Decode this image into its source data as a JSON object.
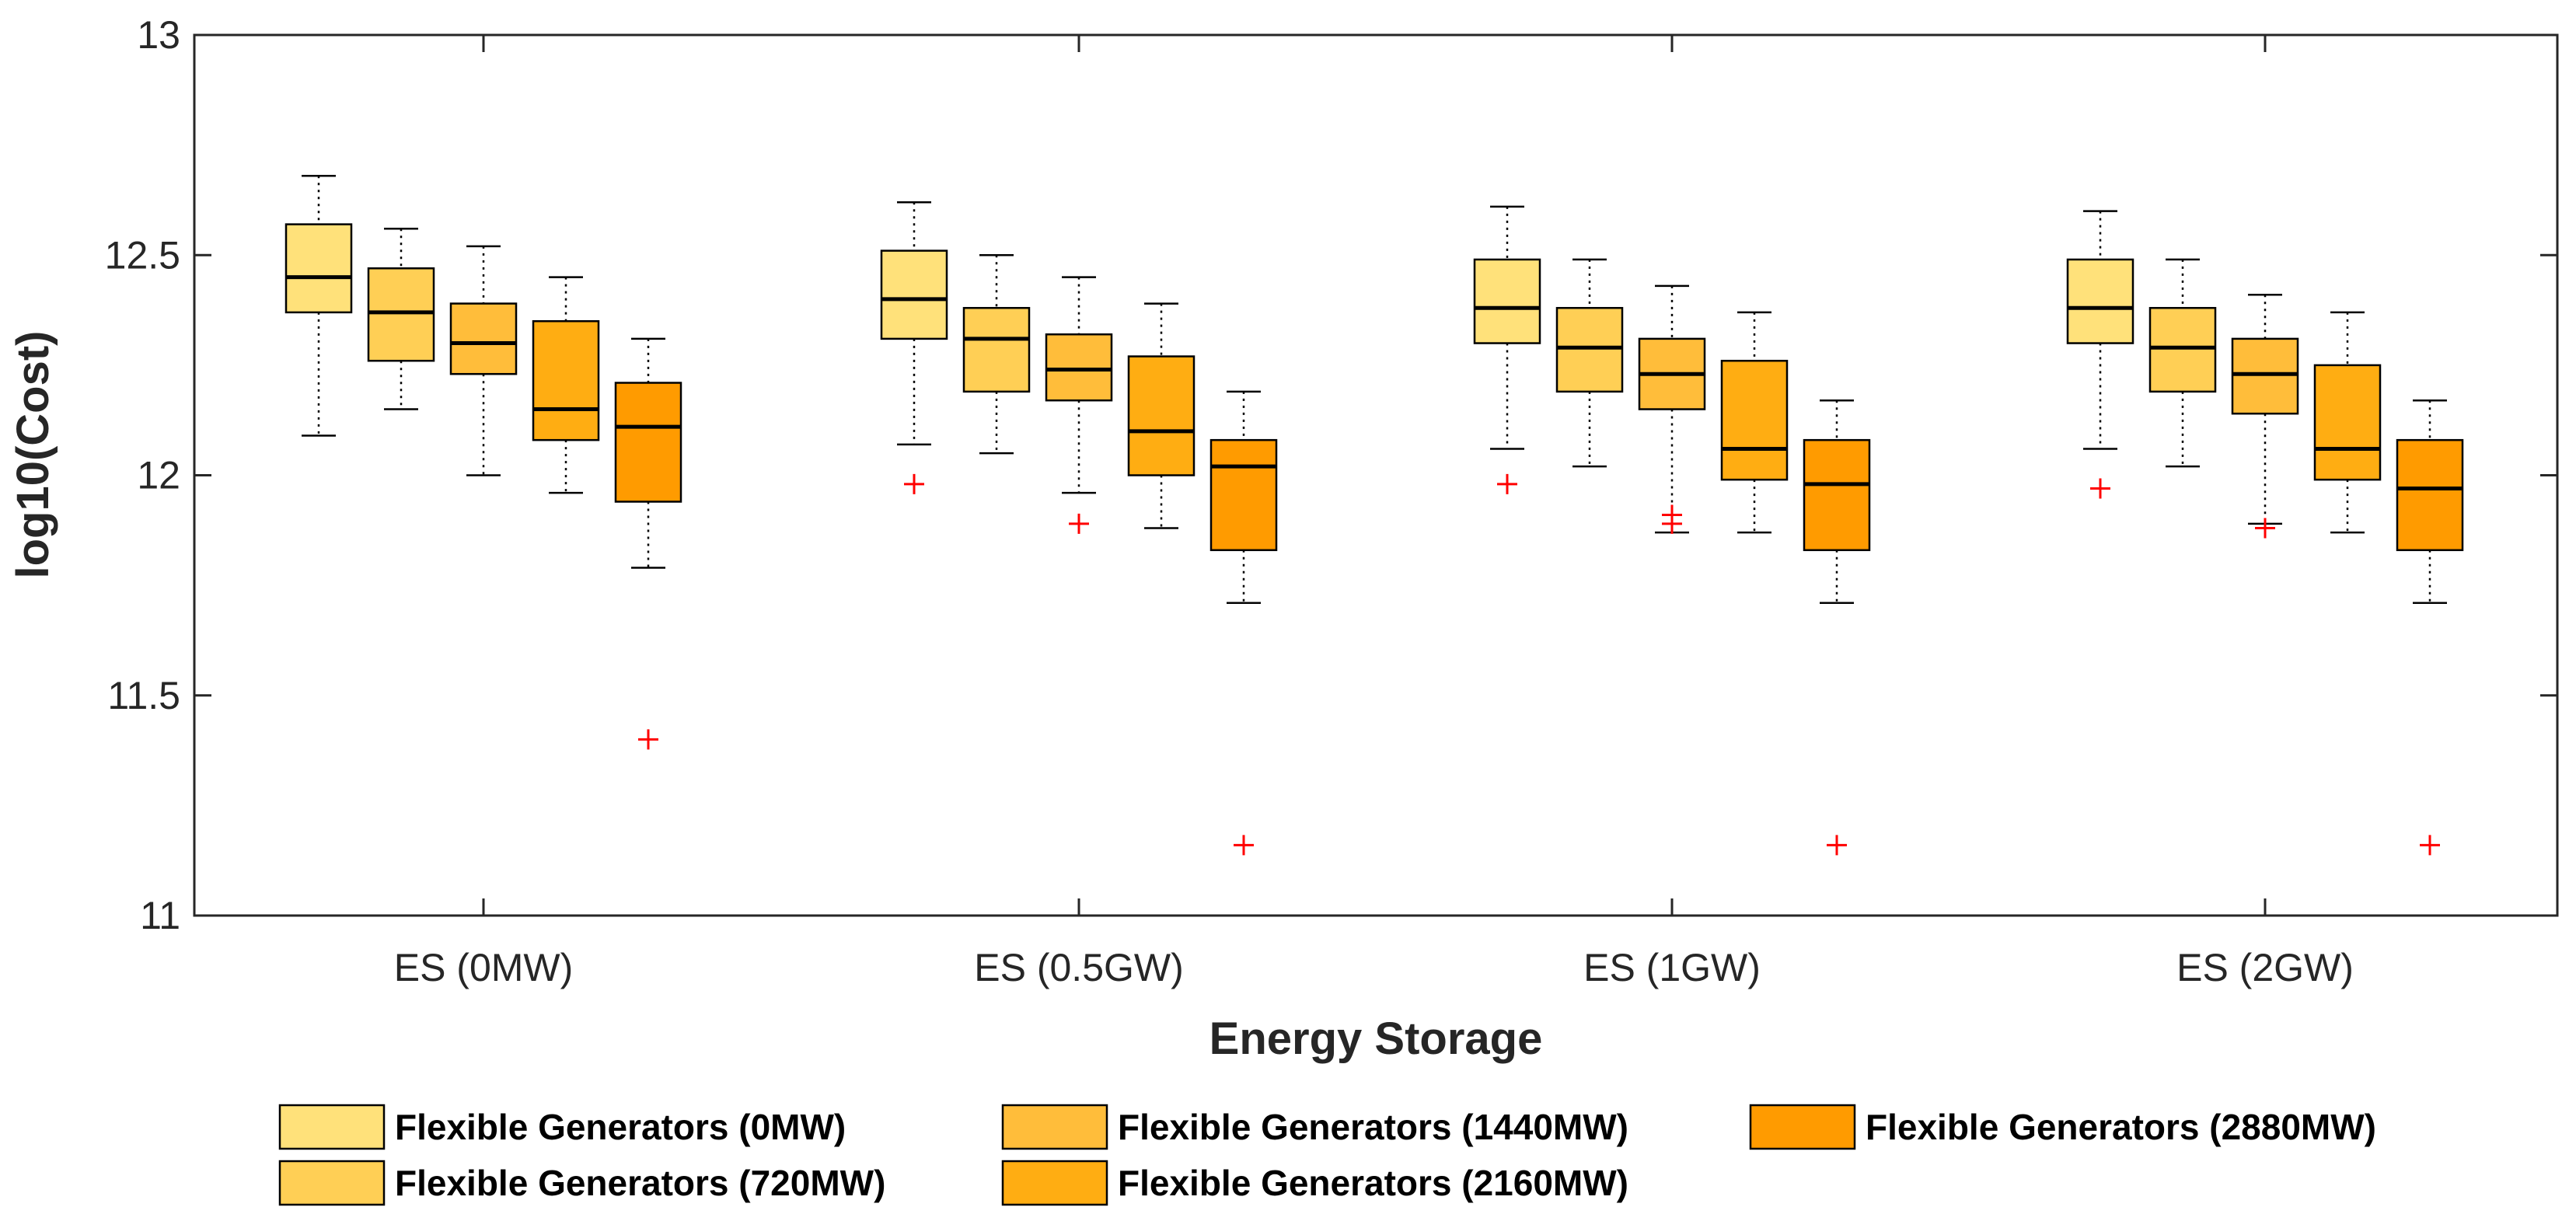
{
  "chart_data": {
    "type": "boxplot",
    "title": "",
    "xlabel": "Energy Storage",
    "ylabel": "log10(Cost)",
    "ylim": [
      11,
      13
    ],
    "yticks": [
      "11",
      "11.5",
      "12",
      "12.5",
      "13"
    ],
    "categories": [
      "ES (0MW)",
      "ES (0.5GW)",
      "ES (1GW)",
      "ES (2GW)"
    ],
    "grid": false,
    "legend_position": "bottom",
    "series": [
      {
        "name": "Flexible Generators (0MW)",
        "color": "#FFE17A",
        "boxes": [
          {
            "min": 12.09,
            "q1": 12.37,
            "median": 12.45,
            "q3": 12.57,
            "max": 12.68,
            "outliers": []
          },
          {
            "min": 12.07,
            "q1": 12.31,
            "median": 12.4,
            "q3": 12.51,
            "max": 12.62,
            "outliers": [
              11.98
            ]
          },
          {
            "min": 12.06,
            "q1": 12.3,
            "median": 12.38,
            "q3": 12.49,
            "max": 12.61,
            "outliers": [
              11.98
            ]
          },
          {
            "min": 12.06,
            "q1": 12.3,
            "median": 12.38,
            "q3": 12.49,
            "max": 12.6,
            "outliers": [
              11.97
            ]
          }
        ]
      },
      {
        "name": "Flexible Generators (720MW)",
        "color": "#FFCF55",
        "boxes": [
          {
            "min": 12.15,
            "q1": 12.26,
            "median": 12.37,
            "q3": 12.47,
            "max": 12.56,
            "outliers": []
          },
          {
            "min": 12.05,
            "q1": 12.19,
            "median": 12.31,
            "q3": 12.38,
            "max": 12.5,
            "outliers": []
          },
          {
            "min": 12.02,
            "q1": 12.19,
            "median": 12.29,
            "q3": 12.38,
            "max": 12.49,
            "outliers": []
          },
          {
            "min": 12.02,
            "q1": 12.19,
            "median": 12.29,
            "q3": 12.38,
            "max": 12.49,
            "outliers": []
          }
        ]
      },
      {
        "name": "Flexible Generators (1440MW)",
        "color": "#FFBD3A",
        "boxes": [
          {
            "min": 12.0,
            "q1": 12.23,
            "median": 12.3,
            "q3": 12.39,
            "max": 12.52,
            "outliers": []
          },
          {
            "min": 11.96,
            "q1": 12.17,
            "median": 12.24,
            "q3": 12.32,
            "max": 12.45,
            "outliers": [
              11.89
            ]
          },
          {
            "min": 11.87,
            "q1": 12.15,
            "median": 12.23,
            "q3": 12.31,
            "max": 12.43,
            "outliers": [
              11.89,
              11.91
            ]
          },
          {
            "min": 11.89,
            "q1": 12.14,
            "median": 12.23,
            "q3": 12.31,
            "max": 12.41,
            "outliers": [
              11.88
            ]
          }
        ]
      },
      {
        "name": "Flexible Generators (2160MW)",
        "color": "#FFAD12",
        "boxes": [
          {
            "min": 11.96,
            "q1": 12.08,
            "median": 12.15,
            "q3": 12.35,
            "max": 12.45,
            "outliers": []
          },
          {
            "min": 11.88,
            "q1": 12.0,
            "median": 12.1,
            "q3": 12.27,
            "max": 12.39,
            "outliers": []
          },
          {
            "min": 11.87,
            "q1": 11.99,
            "median": 12.06,
            "q3": 12.26,
            "max": 12.37,
            "outliers": []
          },
          {
            "min": 11.87,
            "q1": 11.99,
            "median": 12.06,
            "q3": 12.25,
            "max": 12.37,
            "outliers": []
          }
        ]
      },
      {
        "name": "Flexible Generators (2880MW)",
        "color": "#FF9B00",
        "boxes": [
          {
            "min": 11.79,
            "q1": 11.94,
            "median": 12.11,
            "q3": 12.21,
            "max": 12.31,
            "outliers": [
              11.4
            ]
          },
          {
            "min": 11.71,
            "q1": 11.83,
            "median": 12.02,
            "q3": 12.08,
            "max": 12.19,
            "outliers": [
              11.16
            ]
          },
          {
            "min": 11.71,
            "q1": 11.83,
            "median": 11.98,
            "q3": 12.08,
            "max": 12.17,
            "outliers": [
              11.16
            ]
          },
          {
            "min": 11.71,
            "q1": 11.83,
            "median": 11.97,
            "q3": 12.08,
            "max": 12.17,
            "outliers": [
              11.16
            ]
          }
        ]
      }
    ],
    "outlier_color": "#FF0000",
    "median_color": "#000000"
  }
}
